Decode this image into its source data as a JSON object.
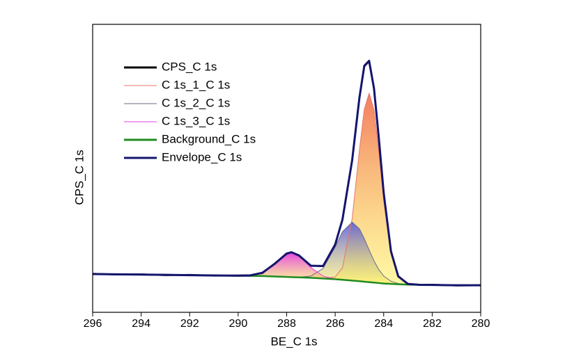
{
  "chart_data": {
    "type": "line",
    "x_label": "BE_C 1s",
    "y_label": "CPS_C 1s",
    "xlim": [
      296,
      280
    ],
    "ylim": [
      0,
      100
    ],
    "xticks": [
      296,
      294,
      292,
      290,
      288,
      286,
      284,
      282,
      280
    ],
    "x": [
      296,
      295,
      294,
      293,
      292,
      291,
      290,
      289.5,
      289,
      288.5,
      288,
      287.8,
      287.5,
      287,
      286.5,
      286,
      285.7,
      285.3,
      285,
      284.8,
      284.6,
      284.4,
      284.2,
      284,
      283.7,
      283.4,
      283,
      282.5,
      282,
      281,
      280
    ],
    "series": [
      {
        "name": "CPS_C 1s",
        "color": "#000000",
        "values": [
          13.4,
          13.1,
          13.2,
          12.9,
          13.0,
          12.7,
          12.8,
          12.9,
          13.6,
          16.9,
          20.3,
          20.9,
          19.7,
          16.2,
          16.0,
          23.6,
          32.1,
          52.9,
          74.4,
          85.7,
          87.4,
          77.6,
          60.5,
          41.3,
          21.3,
          12.4,
          9.9,
          9.5,
          9.6,
          9.3,
          9.4
        ]
      },
      {
        "name": "C 1s_1_C 1s",
        "color": "#e8746a",
        "fill": "#f26d4f",
        "values": [
          13.3,
          13.2,
          13.1,
          13.0,
          12.9,
          12.8,
          12.7,
          12.65,
          12.6,
          12.45,
          12.3,
          12.24,
          12.15,
          12.0,
          11.77,
          12.27,
          15.49,
          32.51,
          56.4,
          70.54,
          76.08,
          70.22,
          55.76,
          38.9,
          20.28,
          12.26,
          9.8,
          9.55,
          9.5,
          9.4,
          9.4
        ]
      },
      {
        "name": "C 1s_2_C 1s",
        "color": "#6a6a8a",
        "fill": "#5a5ae0",
        "values": [
          13.3,
          13.2,
          13.1,
          13.0,
          12.9,
          12.8,
          12.7,
          12.65,
          12.6,
          12.45,
          12.3,
          12.24,
          12.21,
          12.6,
          15.24,
          22.66,
          27.99,
          31.31,
          28.99,
          25.6,
          21.64,
          17.88,
          14.8,
          12.59,
          10.78,
          10.01,
          9.63,
          9.55,
          9.5,
          9.4,
          9.4
        ]
      },
      {
        "name": "C 1s_3_C 1s",
        "color": "#e040e0",
        "fill": "#e030e0",
        "values": [
          13.3,
          13.2,
          13.1,
          13.0,
          12.9,
          12.8,
          12.71,
          12.81,
          13.76,
          16.8,
          20.43,
          20.84,
          19.74,
          15.54,
          12.57,
          11.6,
          11.31,
          11.01,
          10.8,
          10.64,
          10.48,
          10.32,
          10.16,
          10.0,
          9.88,
          9.76,
          9.6,
          9.55,
          9.5,
          9.4,
          9.4
        ]
      },
      {
        "name": "Background_C 1s",
        "color": "#1f8a1f",
        "values": [
          13.3,
          13.2,
          13.1,
          13.0,
          12.9,
          12.8,
          12.7,
          12.65,
          12.6,
          12.45,
          12.3,
          12.24,
          12.15,
          12.0,
          11.75,
          11.5,
          11.29,
          11.01,
          10.8,
          10.64,
          10.48,
          10.32,
          10.16,
          10.0,
          9.88,
          9.76,
          9.6,
          9.55,
          9.5,
          9.4,
          9.4
        ]
      },
      {
        "name": "Envelope_C 1s",
        "color": "#15156e",
        "values": [
          13.3,
          13.2,
          13.1,
          13.0,
          12.9,
          12.8,
          12.71,
          12.81,
          13.76,
          16.8,
          20.43,
          20.84,
          19.8,
          16.14,
          16.08,
          23.53,
          32.21,
          52.81,
          74.59,
          85.5,
          87.24,
          77.78,
          60.4,
          41.49,
          21.18,
          12.51,
          9.83,
          9.55,
          9.5,
          9.4,
          9.4
        ]
      }
    ],
    "background_series": 4,
    "legend": "upper left"
  }
}
